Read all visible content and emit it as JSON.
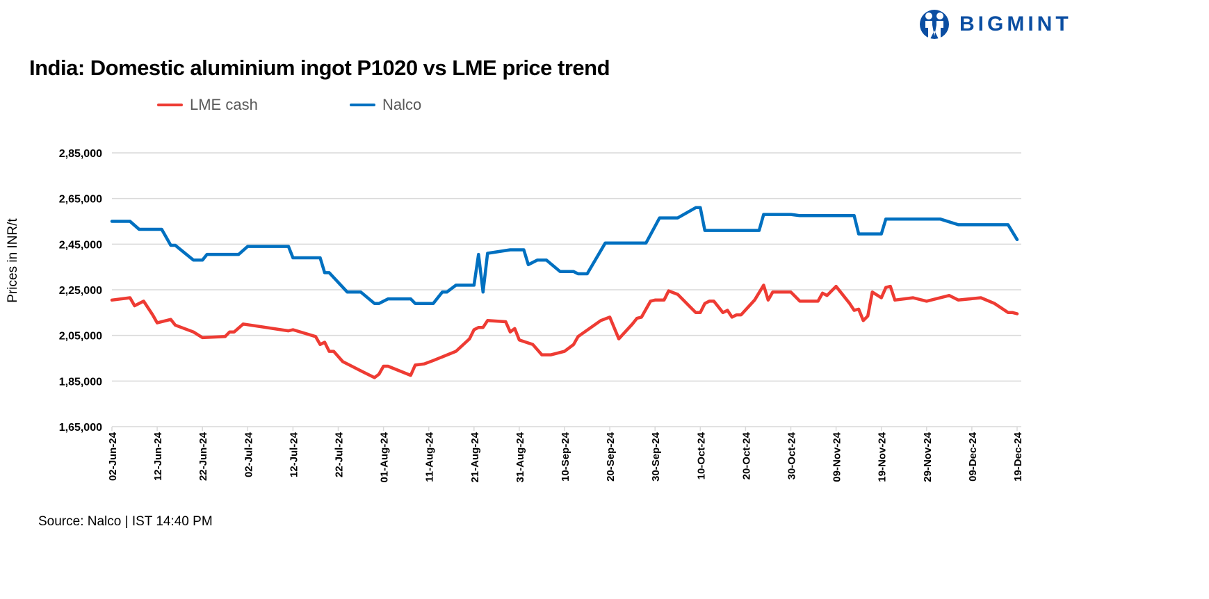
{
  "brand": {
    "logo_text": "BIGMINT",
    "color": "#0B4EA2"
  },
  "footer": {
    "source": "Source: Nalco | IST 14:40 PM"
  },
  "chart_data": {
    "type": "line",
    "title": "India: Domestic aluminium ingot P1020 vs LME price trend",
    "xlabel": "",
    "ylabel": "Prices in INR/t",
    "ylim": [
      165000,
      285000
    ],
    "xlim": [
      "2024-06-02",
      "2024-12-19"
    ],
    "y_ticks": [
      165000,
      185000,
      205000,
      225000,
      245000,
      265000,
      285000
    ],
    "y_tick_labels": [
      "1,65,000",
      "1,85,000",
      "2,05,000",
      "2,25,000",
      "2,45,000",
      "2,65,000",
      "2,85,000"
    ],
    "x_tick_labels": [
      "02-Jun-24",
      "12-Jun-24",
      "22-Jun-24",
      "02-Jul-24",
      "12-Jul-24",
      "22-Jul-24",
      "01-Aug-24",
      "11-Aug-24",
      "21-Aug-24",
      "31-Aug-24",
      "10-Sep-24",
      "20-Sep-24",
      "30-Sep-24",
      "10-Oct-24",
      "20-Oct-24",
      "30-Oct-24",
      "09-Nov-24",
      "19-Nov-24",
      "29-Nov-24",
      "09-Dec-24",
      "19-Dec-24"
    ],
    "grid": true,
    "legend_position": "top",
    "series": [
      {
        "name": "LME cash",
        "color": "#EE3B33",
        "points": [
          [
            "2024-06-02",
            220500
          ],
          [
            "2024-06-06",
            221500
          ],
          [
            "2024-06-07",
            218000
          ],
          [
            "2024-06-09",
            220000
          ],
          [
            "2024-06-11",
            214000
          ],
          [
            "2024-06-12",
            210500
          ],
          [
            "2024-06-15",
            212000
          ],
          [
            "2024-06-16",
            209500
          ],
          [
            "2024-06-20",
            206500
          ],
          [
            "2024-06-22",
            204000
          ],
          [
            "2024-06-27",
            204500
          ],
          [
            "2024-06-28",
            206500
          ],
          [
            "2024-06-29",
            206500
          ],
          [
            "2024-07-01",
            210000
          ],
          [
            "2024-07-11",
            207000
          ],
          [
            "2024-07-12",
            207500
          ],
          [
            "2024-07-17",
            204500
          ],
          [
            "2024-07-18",
            201000
          ],
          [
            "2024-07-19",
            202000
          ],
          [
            "2024-07-20",
            198000
          ],
          [
            "2024-07-21",
            198000
          ],
          [
            "2024-07-23",
            193500
          ],
          [
            "2024-07-27",
            189500
          ],
          [
            "2024-07-30",
            186500
          ],
          [
            "2024-07-31",
            188000
          ],
          [
            "2024-08-01",
            191500
          ],
          [
            "2024-08-02",
            191500
          ],
          [
            "2024-08-07",
            187500
          ],
          [
            "2024-08-08",
            192000
          ],
          [
            "2024-08-10",
            192500
          ],
          [
            "2024-08-12",
            194000
          ],
          [
            "2024-08-17",
            198000
          ],
          [
            "2024-08-20",
            203500
          ],
          [
            "2024-08-21",
            207500
          ],
          [
            "2024-08-22",
            208500
          ],
          [
            "2024-08-23",
            208500
          ],
          [
            "2024-08-24",
            211500
          ],
          [
            "2024-08-28",
            211000
          ],
          [
            "2024-08-29",
            206500
          ],
          [
            "2024-08-30",
            208000
          ],
          [
            "2024-08-31",
            203000
          ],
          [
            "2024-09-03",
            201000
          ],
          [
            "2024-09-05",
            196500
          ],
          [
            "2024-09-07",
            196500
          ],
          [
            "2024-09-10",
            198000
          ],
          [
            "2024-09-12",
            201000
          ],
          [
            "2024-09-13",
            204500
          ],
          [
            "2024-09-18",
            211500
          ],
          [
            "2024-09-20",
            213000
          ],
          [
            "2024-09-22",
            203500
          ],
          [
            "2024-09-25",
            210000
          ],
          [
            "2024-09-26",
            212500
          ],
          [
            "2024-09-27",
            213000
          ],
          [
            "2024-09-29",
            220000
          ],
          [
            "2024-09-30",
            220500
          ],
          [
            "2024-10-02",
            220500
          ],
          [
            "2024-10-03",
            224500
          ],
          [
            "2024-10-05",
            223000
          ],
          [
            "2024-10-08",
            217000
          ],
          [
            "2024-10-09",
            215000
          ],
          [
            "2024-10-10",
            215000
          ],
          [
            "2024-10-11",
            219000
          ],
          [
            "2024-10-12",
            220000
          ],
          [
            "2024-10-13",
            220000
          ],
          [
            "2024-10-15",
            215000
          ],
          [
            "2024-10-16",
            216000
          ],
          [
            "2024-10-17",
            213000
          ],
          [
            "2024-10-18",
            214000
          ],
          [
            "2024-10-19",
            214000
          ],
          [
            "2024-10-22",
            220500
          ],
          [
            "2024-10-24",
            227000
          ],
          [
            "2024-10-25",
            220500
          ],
          [
            "2024-10-26",
            224000
          ],
          [
            "2024-10-30",
            224000
          ],
          [
            "2024-11-01",
            220000
          ],
          [
            "2024-11-05",
            220000
          ],
          [
            "2024-11-06",
            223500
          ],
          [
            "2024-11-07",
            222500
          ],
          [
            "2024-11-09",
            226500
          ],
          [
            "2024-11-10",
            224000
          ],
          [
            "2024-11-12",
            219000
          ],
          [
            "2024-11-13",
            216000
          ],
          [
            "2024-11-14",
            216500
          ],
          [
            "2024-11-15",
            211500
          ],
          [
            "2024-11-16",
            213500
          ],
          [
            "2024-11-17",
            224000
          ],
          [
            "2024-11-19",
            221500
          ],
          [
            "2024-11-20",
            226000
          ],
          [
            "2024-11-21",
            226500
          ],
          [
            "2024-11-22",
            220500
          ],
          [
            "2024-11-26",
            221500
          ],
          [
            "2024-11-29",
            220000
          ],
          [
            "2024-12-04",
            222500
          ],
          [
            "2024-12-06",
            220500
          ],
          [
            "2024-12-11",
            221500
          ],
          [
            "2024-12-14",
            219000
          ],
          [
            "2024-12-17",
            215000
          ],
          [
            "2024-12-18",
            215000
          ],
          [
            "2024-12-19",
            214500
          ]
        ]
      },
      {
        "name": "Nalco",
        "color": "#0070C0",
        "points": [
          [
            "2024-06-02",
            255000
          ],
          [
            "2024-06-06",
            255000
          ],
          [
            "2024-06-08",
            251500
          ],
          [
            "2024-06-13",
            251500
          ],
          [
            "2024-06-15",
            244500
          ],
          [
            "2024-06-16",
            244500
          ],
          [
            "2024-06-20",
            238000
          ],
          [
            "2024-06-22",
            238000
          ],
          [
            "2024-06-23",
            240500
          ],
          [
            "2024-06-30",
            240500
          ],
          [
            "2024-07-02",
            244000
          ],
          [
            "2024-07-11",
            244000
          ],
          [
            "2024-07-12",
            239000
          ],
          [
            "2024-07-18",
            239000
          ],
          [
            "2024-07-19",
            232500
          ],
          [
            "2024-07-20",
            232500
          ],
          [
            "2024-07-24",
            224000
          ],
          [
            "2024-07-27",
            224000
          ],
          [
            "2024-07-30",
            219000
          ],
          [
            "2024-07-31",
            219000
          ],
          [
            "2024-08-02",
            221000
          ],
          [
            "2024-08-07",
            221000
          ],
          [
            "2024-08-08",
            219000
          ],
          [
            "2024-08-12",
            219000
          ],
          [
            "2024-08-14",
            224000
          ],
          [
            "2024-08-15",
            224000
          ],
          [
            "2024-08-17",
            227000
          ],
          [
            "2024-08-21",
            227000
          ],
          [
            "2024-08-22",
            240500
          ],
          [
            "2024-08-23",
            224000
          ],
          [
            "2024-08-24",
            241000
          ],
          [
            "2024-08-29",
            242500
          ],
          [
            "2024-09-01",
            242500
          ],
          [
            "2024-09-02",
            236000
          ],
          [
            "2024-09-04",
            238000
          ],
          [
            "2024-09-06",
            238000
          ],
          [
            "2024-09-09",
            233000
          ],
          [
            "2024-09-12",
            233000
          ],
          [
            "2024-09-13",
            232000
          ],
          [
            "2024-09-15",
            232000
          ],
          [
            "2024-09-19",
            245500
          ],
          [
            "2024-09-28",
            245500
          ],
          [
            "2024-10-01",
            256500
          ],
          [
            "2024-10-05",
            256500
          ],
          [
            "2024-10-09",
            261000
          ],
          [
            "2024-10-10",
            261000
          ],
          [
            "2024-10-11",
            251000
          ],
          [
            "2024-10-23",
            251000
          ],
          [
            "2024-10-24",
            258000
          ],
          [
            "2024-10-30",
            258000
          ],
          [
            "2024-11-01",
            257500
          ],
          [
            "2024-11-13",
            257500
          ],
          [
            "2024-11-14",
            249500
          ],
          [
            "2024-11-19",
            249500
          ],
          [
            "2024-11-20",
            256000
          ],
          [
            "2024-12-02",
            256000
          ],
          [
            "2024-12-06",
            253500
          ],
          [
            "2024-12-17",
            253500
          ],
          [
            "2024-12-19",
            247000
          ]
        ]
      }
    ]
  }
}
